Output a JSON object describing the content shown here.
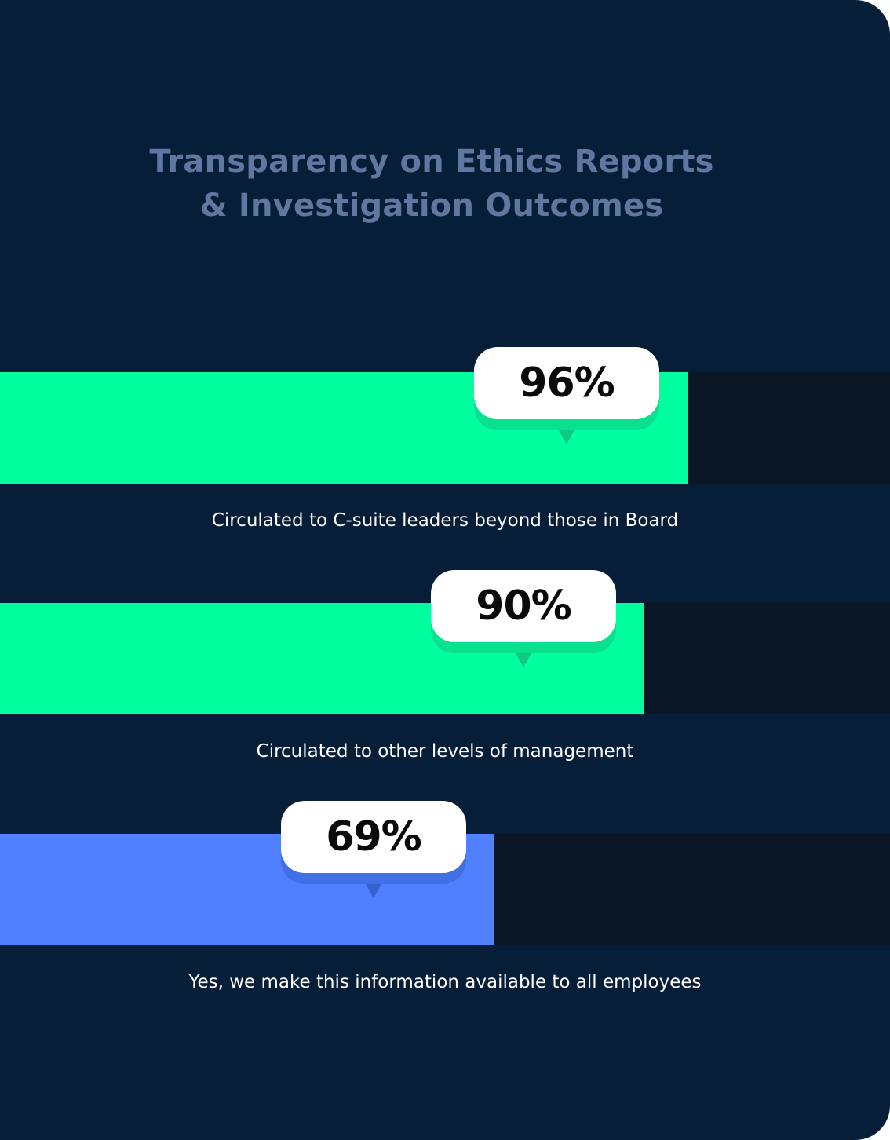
{
  "chart_data": {
    "type": "bar",
    "orientation": "horizontal",
    "title": "Transparency on Ethics Reports & Investigation Outcomes",
    "title_lines": [
      "Transparency on Ethics Reports",
      "& Investigation Outcomes"
    ],
    "unit": "%",
    "xlim": [
      0,
      100
    ],
    "bars": [
      {
        "category": "Circulated to C-suite leaders beyond those in Board",
        "value": 96,
        "value_label": "96%",
        "color": "#00ff9f",
        "shadow_color": "#10c97f"
      },
      {
        "category": "Circulated to other levels of management",
        "value": 90,
        "value_label": "90%",
        "color": "#00ff9f",
        "shadow_color": "#10c97f"
      },
      {
        "category": "Yes, we make this information available to all employees",
        "value": 69,
        "value_label": "69%",
        "color": "#5080ff",
        "shadow_color": "#3560d0"
      }
    ]
  },
  "colors": {
    "background": "#061e38",
    "track": "#0b1726",
    "title": "#5f789f",
    "label": "#ffffff"
  }
}
